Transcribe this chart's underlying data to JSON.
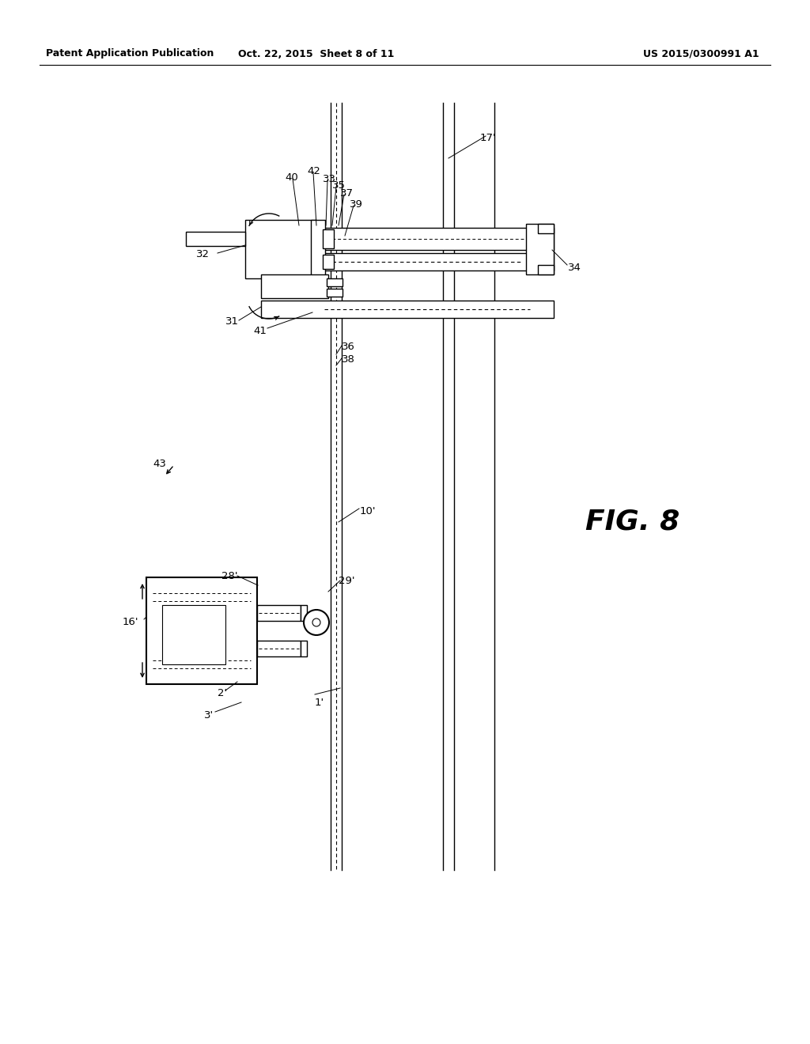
{
  "background_color": "#ffffff",
  "header_left": "Patent Application Publication",
  "header_center": "Oct. 22, 2015  Sheet 8 of 11",
  "header_right": "US 2015/0300991 A1",
  "fig_label": "FIG. 8",
  "line_color": "#000000"
}
